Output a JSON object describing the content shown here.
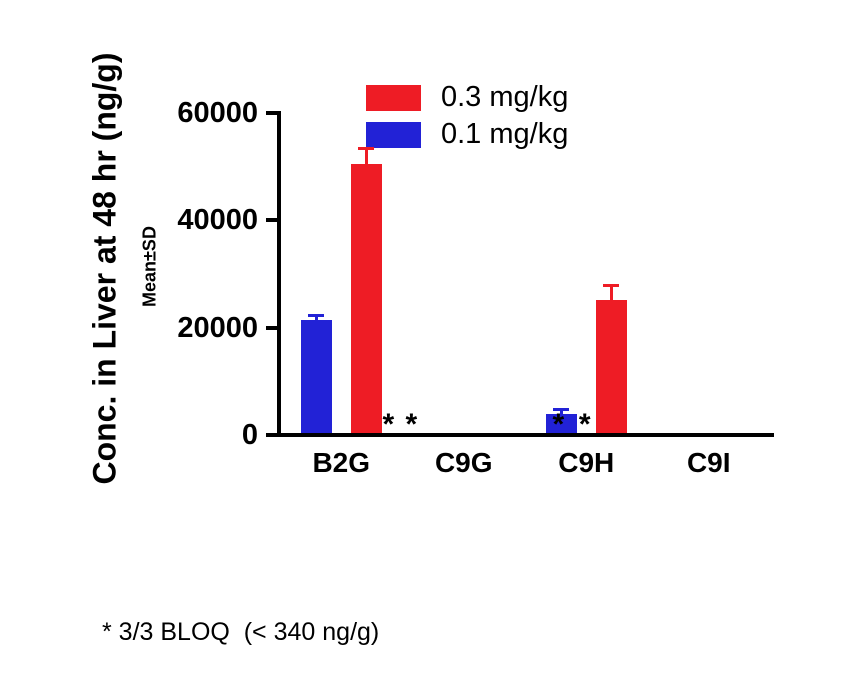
{
  "chart_data": {
    "type": "bar",
    "title": "",
    "ylabel": "Conc. in Liver at 48 hr (ng/g)",
    "ylabel_sub": "Mean±SD",
    "categories": [
      "B2G",
      "C9G",
      "C9H",
      "C9I"
    ],
    "series": [
      {
        "name": "0.1 mg/kg",
        "color": "#2222d6",
        "values": [
          21500,
          null,
          4000,
          null
        ],
        "sd": [
          800,
          null,
          800,
          null
        ]
      },
      {
        "name": "0.3 mg/kg",
        "color": "#ee1c25",
        "values": [
          50500,
          null,
          25200,
          null
        ],
        "sd": [
          2800,
          null,
          2700,
          null
        ]
      }
    ],
    "legend": [
      {
        "label": "0.3 mg/kg",
        "color": "#ee1c25"
      },
      {
        "label": "0.1 mg/kg",
        "color": "#2222d6"
      }
    ],
    "ylim": [
      0,
      60000
    ],
    "yticks": [
      0,
      20000,
      40000,
      60000
    ],
    "grid": false,
    "legend_position": "top-inside",
    "axis_color": "#000000",
    "bloq_markers": [
      {
        "x_frac": 0.221,
        "symbol": "*"
      },
      {
        "x_frac": 0.268,
        "symbol": "*"
      },
      {
        "x_frac": 0.568,
        "symbol": "*"
      },
      {
        "x_frac": 0.622,
        "symbol": "*"
      }
    ],
    "footnote": "* 3/3 BLOQ  (< 340 ng/g)"
  }
}
